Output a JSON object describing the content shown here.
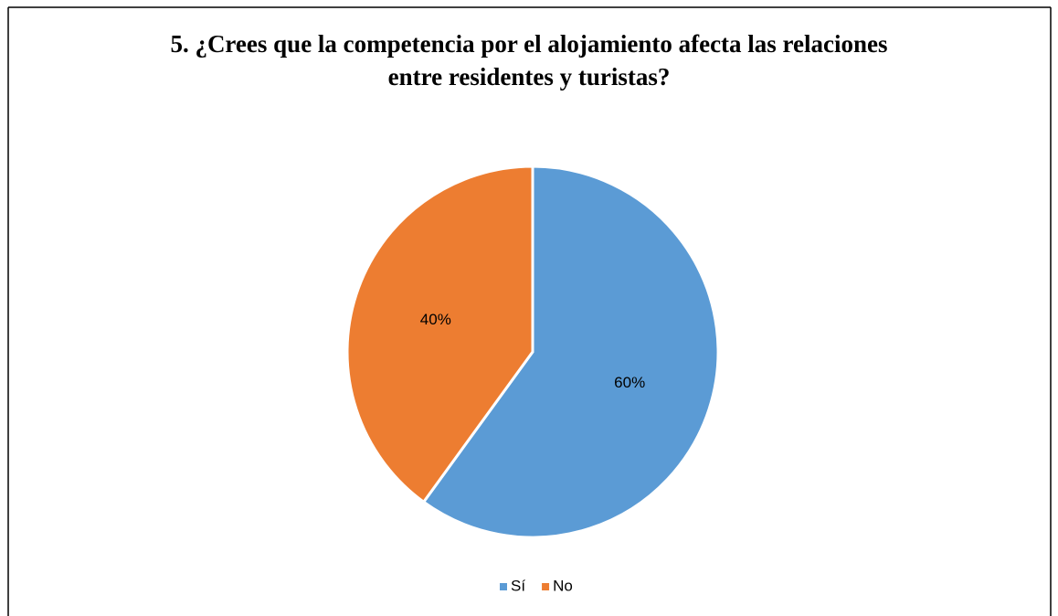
{
  "chart_data": {
    "type": "pie",
    "title": "5. ¿Crees que la competencia por el alojamiento afecta las relaciones entre residentes y turistas?",
    "categories": [
      "Sí",
      "No"
    ],
    "values": [
      60,
      40
    ],
    "value_labels": [
      "60%",
      "40%"
    ],
    "colors": [
      "#5b9bd5",
      "#ed7d31"
    ],
    "legend": "bottom"
  }
}
